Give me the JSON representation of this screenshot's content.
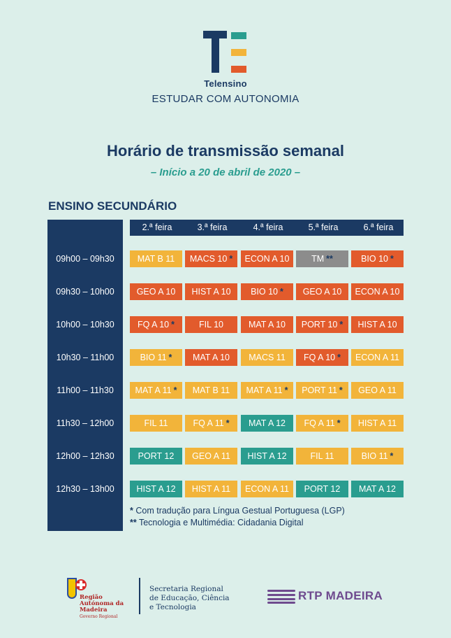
{
  "brand": {
    "name": "Telensino",
    "tagline": "ESTUDAR COM AUTONOMIA"
  },
  "title": "Horário de transmissão semanal",
  "subtitle": "– Início a 20 de abril de 2020 –",
  "section": "ENSINO SECUNDÁRIO",
  "days": [
    "2.ª feira",
    "3.ª feira",
    "4.ª feira",
    "5.ª feira",
    "6.ª feira"
  ],
  "times": [
    "09h00 – 09h30",
    "09h30 – 10h00",
    "10h00 – 10h30",
    "10h30 – 11h00",
    "11h00 – 11h30",
    "11h30 – 12h00",
    "12h00 – 12h30",
    "12h30 – 13h00"
  ],
  "colors": {
    "yellow": "#f2b43a",
    "orange": "#e25b2c",
    "teal": "#2a9d8f",
    "gray": "#8c8c8c",
    "navy": "#1b3a63"
  },
  "schedule": [
    [
      {
        "subject": "MAT B 11",
        "color": "yellow",
        "mark": ""
      },
      {
        "subject": "MACS 10",
        "color": "orange",
        "mark": "*"
      },
      {
        "subject": "ECON A 10",
        "color": "orange",
        "mark": ""
      },
      {
        "subject": "TM",
        "color": "gray",
        "mark": "**"
      },
      {
        "subject": "BIO 10",
        "color": "orange",
        "mark": "*"
      }
    ],
    [
      {
        "subject": "GEO A 10",
        "color": "orange",
        "mark": ""
      },
      {
        "subject": "HIST A 10",
        "color": "orange",
        "mark": ""
      },
      {
        "subject": "BIO 10",
        "color": "orange",
        "mark": "*"
      },
      {
        "subject": "GEO A 10",
        "color": "orange",
        "mark": ""
      },
      {
        "subject": "ECON A 10",
        "color": "orange",
        "mark": ""
      }
    ],
    [
      {
        "subject": "FQ A 10",
        "color": "orange",
        "mark": "*"
      },
      {
        "subject": "FIL 10",
        "color": "orange",
        "mark": ""
      },
      {
        "subject": "MAT A 10",
        "color": "orange",
        "mark": ""
      },
      {
        "subject": "PORT 10",
        "color": "orange",
        "mark": "*"
      },
      {
        "subject": "HIST A 10",
        "color": "orange",
        "mark": ""
      }
    ],
    [
      {
        "subject": "BIO 11",
        "color": "yellow",
        "mark": "*"
      },
      {
        "subject": "MAT A 10",
        "color": "orange",
        "mark": ""
      },
      {
        "subject": "MACS 11",
        "color": "yellow",
        "mark": ""
      },
      {
        "subject": "FQ A 10",
        "color": "orange",
        "mark": "*"
      },
      {
        "subject": "ECON A 11",
        "color": "yellow",
        "mark": ""
      }
    ],
    [
      {
        "subject": "MAT A 11",
        "color": "yellow",
        "mark": "*"
      },
      {
        "subject": "MAT B 11",
        "color": "yellow",
        "mark": ""
      },
      {
        "subject": "MAT A 11",
        "color": "yellow",
        "mark": "*"
      },
      {
        "subject": "PORT 11",
        "color": "yellow",
        "mark": "*"
      },
      {
        "subject": "GEO A 11",
        "color": "yellow",
        "mark": ""
      }
    ],
    [
      {
        "subject": "FIL 11",
        "color": "yellow",
        "mark": ""
      },
      {
        "subject": "FQ A 11",
        "color": "yellow",
        "mark": "*"
      },
      {
        "subject": "MAT A 12",
        "color": "teal",
        "mark": ""
      },
      {
        "subject": "FQ A 11",
        "color": "yellow",
        "mark": "*"
      },
      {
        "subject": "HIST A 11",
        "color": "yellow",
        "mark": ""
      }
    ],
    [
      {
        "subject": "PORT 12",
        "color": "teal",
        "mark": ""
      },
      {
        "subject": "GEO A 11",
        "color": "yellow",
        "mark": ""
      },
      {
        "subject": "HIST A 12",
        "color": "teal",
        "mark": ""
      },
      {
        "subject": "FIL 11",
        "color": "yellow",
        "mark": ""
      },
      {
        "subject": "BIO 11",
        "color": "yellow",
        "mark": "*"
      }
    ],
    [
      {
        "subject": "HIST A 12",
        "color": "teal",
        "mark": ""
      },
      {
        "subject": "HIST A 11",
        "color": "yellow",
        "mark": ""
      },
      {
        "subject": "ECON A 11",
        "color": "yellow",
        "mark": ""
      },
      {
        "subject": "PORT 12",
        "color": "teal",
        "mark": ""
      },
      {
        "subject": "MAT A 12",
        "color": "teal",
        "mark": ""
      }
    ]
  ],
  "footnotes": [
    {
      "mark": "*",
      "text": "Com tradução para Língua Gestual Portuguesa (LGP)"
    },
    {
      "mark": "**",
      "text": "Tecnologia e Multimédia: Cidadania Digital"
    }
  ],
  "footer": {
    "region_name": "Região Autónoma da Madeira",
    "region_sub": "Governo Regional",
    "secretaria": [
      "Secretaria Regional",
      "de Educação, Ciência",
      "e Tecnologia"
    ],
    "broadcaster": "RTP MADEIRA"
  }
}
